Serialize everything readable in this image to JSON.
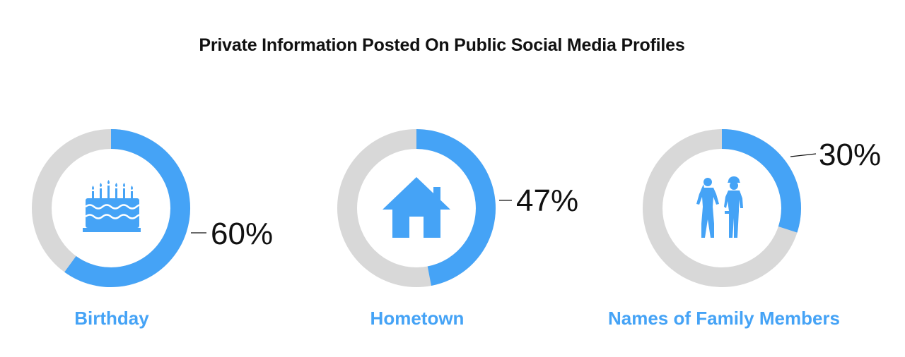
{
  "title": "Private Information Posted On Public Social Media Profiles",
  "colors": {
    "accent": "#45a3f6",
    "track": "#d8d8d8",
    "text": "#111111"
  },
  "chart_data": {
    "type": "pie",
    "title": "Private Information Posted On Public Social Media Profiles",
    "categories": [
      "Birthday",
      "Hometown",
      "Names of Family Members"
    ],
    "values": [
      60,
      47,
      30
    ],
    "value_labels": [
      "60%",
      "47%",
      "30%"
    ],
    "icons": [
      "birthday-cake-icon",
      "house-icon",
      "family-members-icon"
    ],
    "unit": "%"
  }
}
